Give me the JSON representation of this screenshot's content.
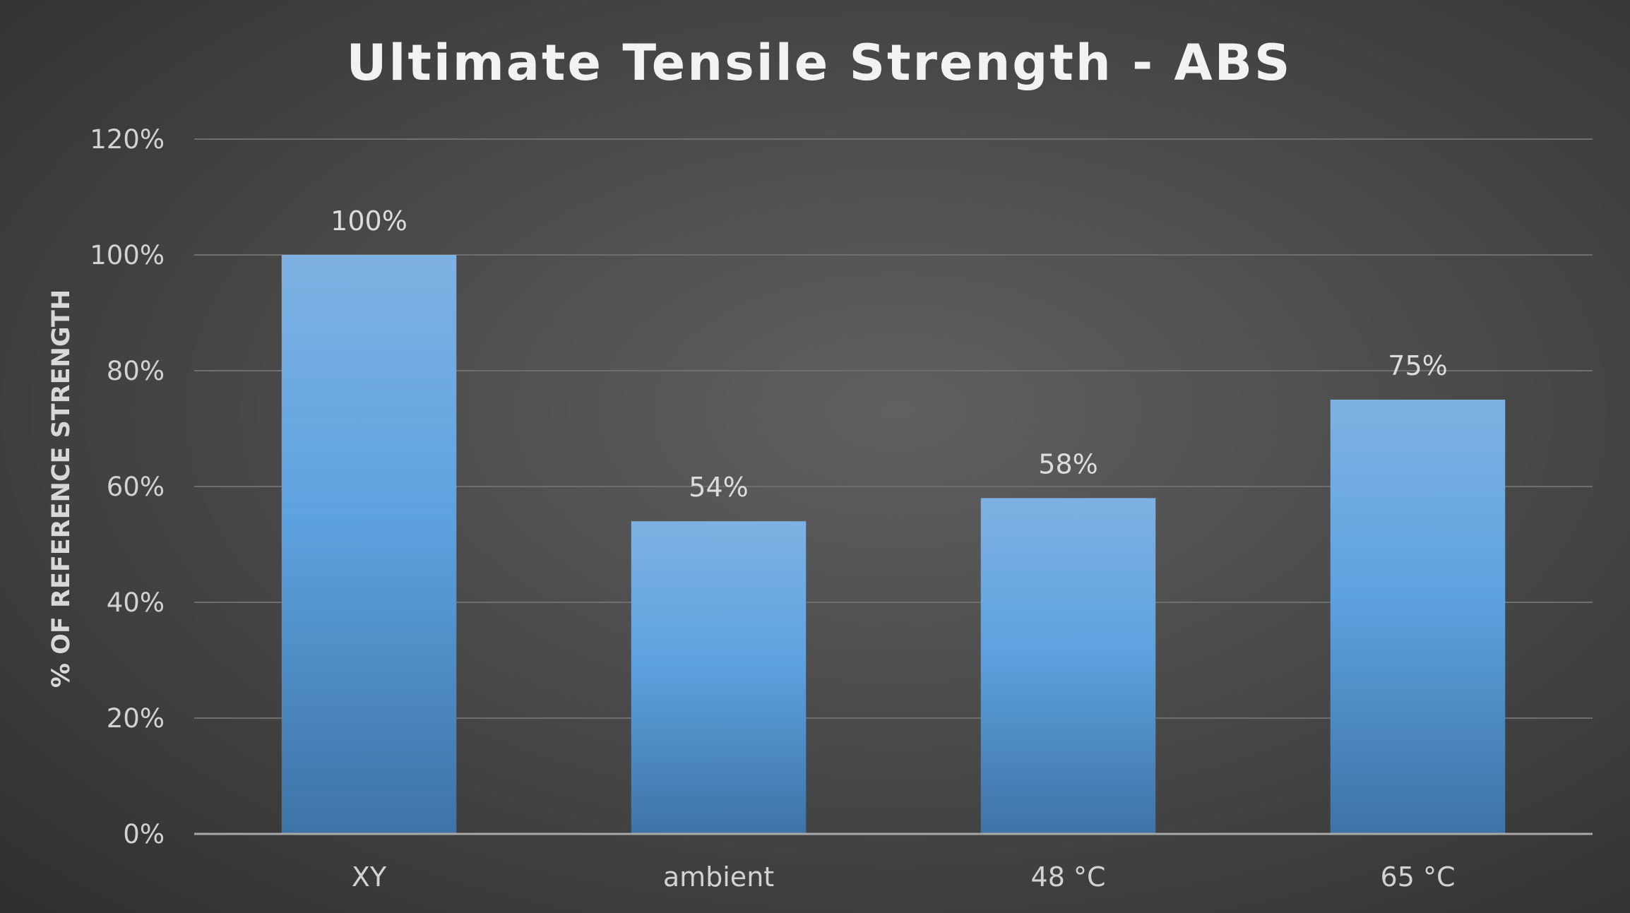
{
  "chart_data": {
    "type": "bar",
    "title": "Ultimate Tensile Strength - ABS",
    "xlabel": "",
    "ylabel": "% OF REFERENCE STRENGTH",
    "categories": [
      "XY",
      "ambient",
      "48 °C",
      "65 °C"
    ],
    "values": [
      100,
      54,
      58,
      75
    ],
    "data_labels": [
      "100%",
      "54%",
      "58%",
      "75%"
    ],
    "ylim": [
      0,
      120
    ],
    "yticks": [
      0,
      20,
      40,
      60,
      80,
      100,
      120
    ],
    "ytick_labels": [
      "0%",
      "20%",
      "40%",
      "60%",
      "80%",
      "100%",
      "120%"
    ],
    "grid": true,
    "legend": "none",
    "colors": {
      "bar_top": "#7fb1e3",
      "bar_mid": "#5da2e0",
      "bar_bottom": "#3e73a6",
      "background": "#4a4a4a"
    }
  }
}
